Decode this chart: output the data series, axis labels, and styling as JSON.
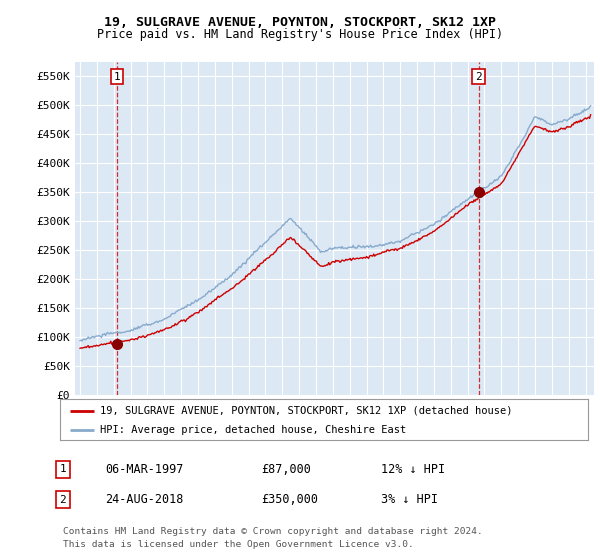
{
  "title": "19, SULGRAVE AVENUE, POYNTON, STOCKPORT, SK12 1XP",
  "subtitle": "Price paid vs. HM Land Registry's House Price Index (HPI)",
  "ytick_values": [
    0,
    50000,
    100000,
    150000,
    200000,
    250000,
    300000,
    350000,
    400000,
    450000,
    500000,
    550000
  ],
  "ylim": [
    0,
    575000
  ],
  "xlim_start": 1994.7,
  "xlim_end": 2025.5,
  "legend_line1": "19, SULGRAVE AVENUE, POYNTON, STOCKPORT, SK12 1XP (detached house)",
  "legend_line2": "HPI: Average price, detached house, Cheshire East",
  "line_color_red": "#cc0000",
  "line_color_blue": "#88aacc",
  "sale1_date": "06-MAR-1997",
  "sale1_price": "£87,000",
  "sale1_hpi": "12% ↓ HPI",
  "sale2_date": "24-AUG-2018",
  "sale2_price": "£350,000",
  "sale2_hpi": "3% ↓ HPI",
  "footnote1": "Contains HM Land Registry data © Crown copyright and database right 2024.",
  "footnote2": "This data is licensed under the Open Government Licence v3.0.",
  "bg_color": "#ffffff",
  "plot_bg_color": "#dce9f5",
  "grid_color": "#ffffff",
  "marker1_x": 1997.18,
  "marker1_y": 87000,
  "marker2_x": 2018.65,
  "marker2_y": 350000
}
